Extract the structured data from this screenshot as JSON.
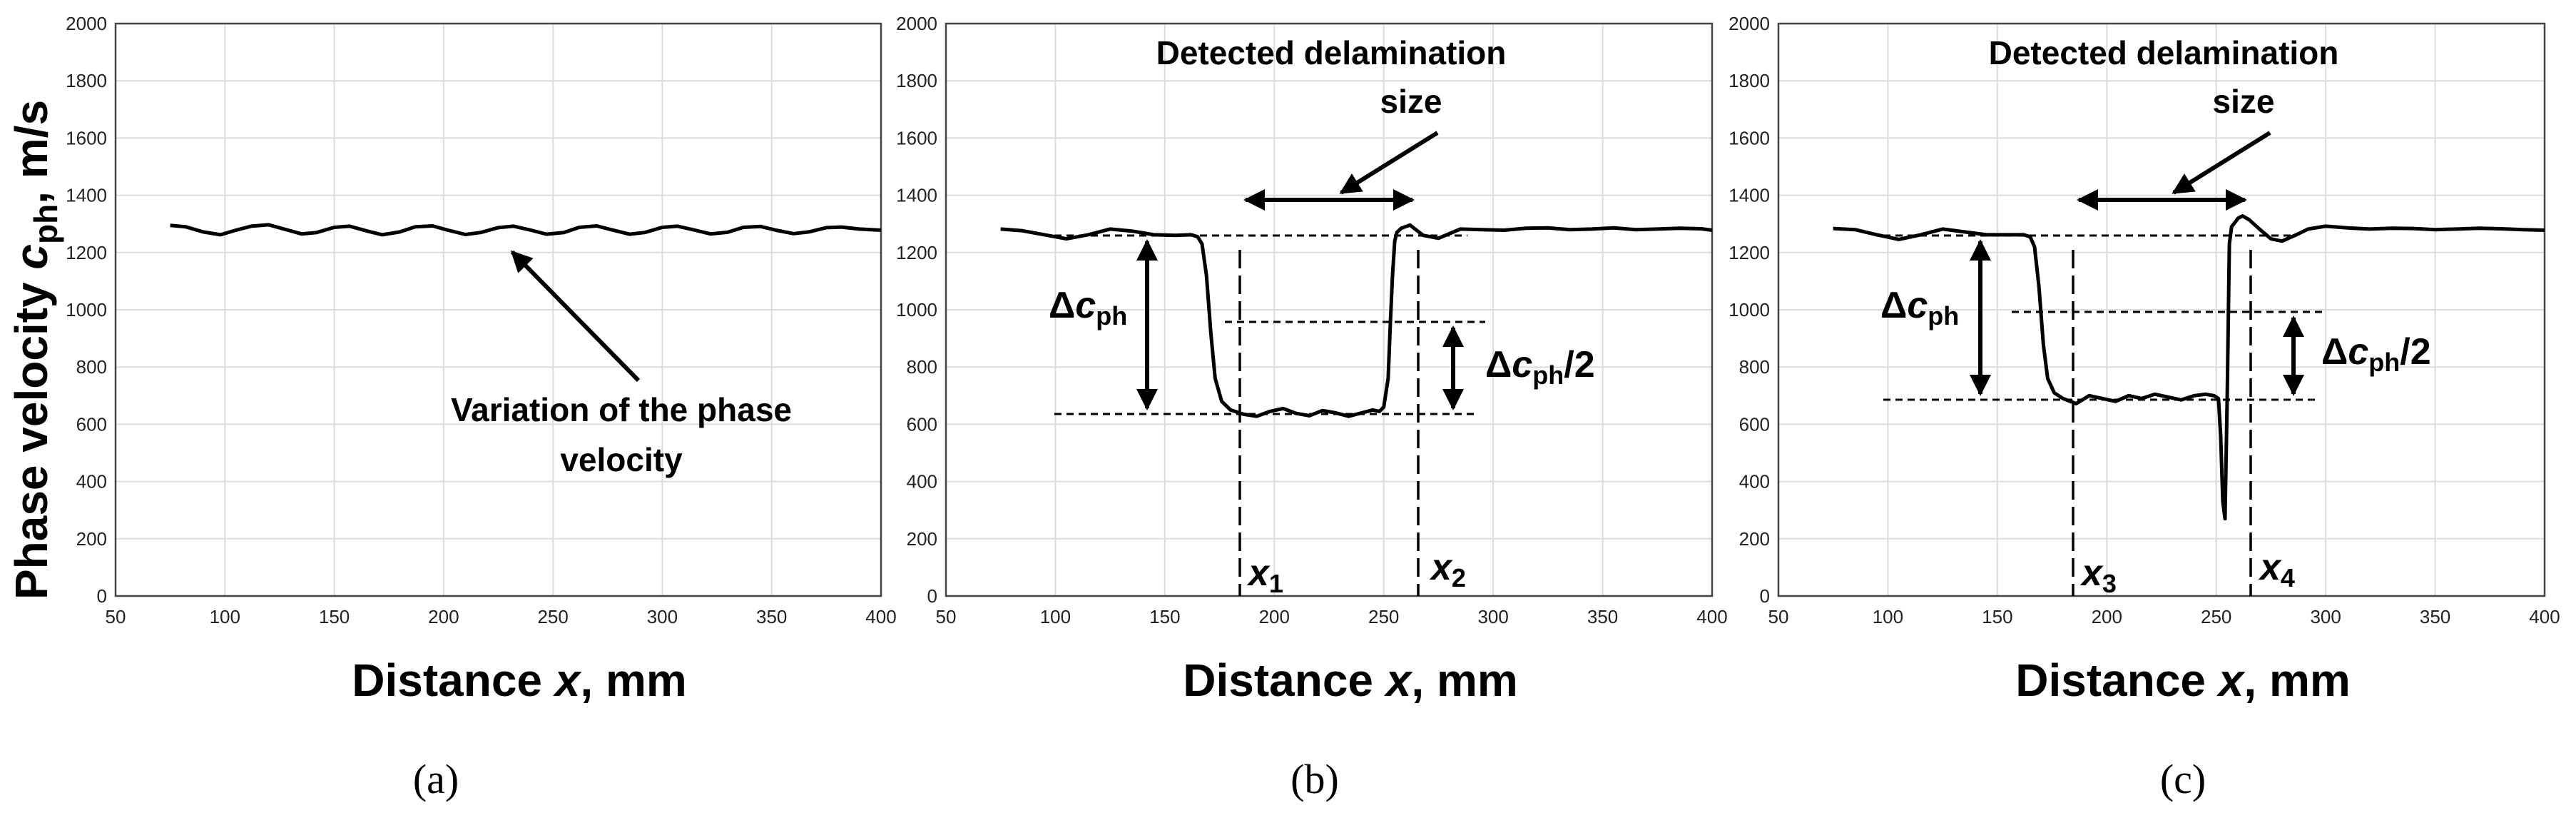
{
  "figure": {
    "shared_ylabel": "Phase velocity",
    "shared_ylabel_sym": "c",
    "shared_ylabel_sub": "ph",
    "shared_ylabel_unit": ", m/s"
  },
  "chart_data": [
    {
      "type": "line",
      "panel": "(a)",
      "xlabel_pre": "Distance ",
      "xlabel_var": "x",
      "xlabel_post": ", mm",
      "xlim": [
        50,
        400
      ],
      "ylim": [
        0,
        2000
      ],
      "xticks": [
        50,
        100,
        150,
        200,
        250,
        300,
        350,
        400
      ],
      "yticks": [
        0,
        200,
        400,
        600,
        800,
        1000,
        1200,
        1400,
        1600,
        1800,
        2000
      ],
      "grid": true,
      "series": [
        {
          "name": "phase velocity",
          "x": [
            75,
            82,
            90,
            98,
            105,
            112,
            120,
            127,
            135,
            142,
            150,
            157,
            165,
            172,
            180,
            187,
            195,
            202,
            210,
            217,
            225,
            232,
            240,
            247,
            255,
            262,
            270,
            277,
            285,
            292,
            300,
            307,
            315,
            322,
            330,
            337,
            345,
            352,
            360,
            367,
            375,
            382,
            390,
            400
          ],
          "y": [
            1295,
            1290,
            1272,
            1262,
            1278,
            1292,
            1297,
            1282,
            1265,
            1270,
            1288,
            1292,
            1275,
            1262,
            1272,
            1290,
            1293,
            1278,
            1263,
            1270,
            1287,
            1292,
            1278,
            1264,
            1270,
            1288,
            1293,
            1279,
            1264,
            1270,
            1288,
            1292,
            1278,
            1265,
            1271,
            1288,
            1291,
            1278,
            1266,
            1272,
            1287,
            1289,
            1282,
            1278
          ]
        }
      ],
      "annotations": {
        "text_line1": "Variation of the phase",
        "text_line2": "velocity"
      }
    },
    {
      "type": "line",
      "panel": "(b)",
      "xlabel_pre": "Distance ",
      "xlabel_var": "x",
      "xlabel_post": ", mm",
      "xlim": [
        50,
        400
      ],
      "ylim": [
        0,
        2000
      ],
      "xticks": [
        50,
        100,
        150,
        200,
        250,
        300,
        350,
        400
      ],
      "yticks": [
        0,
        200,
        400,
        600,
        800,
        1000,
        1200,
        1400,
        1600,
        1800,
        2000
      ],
      "grid": true,
      "series": [
        {
          "name": "phase velocity",
          "x": [
            75,
            85,
            95,
            105,
            115,
            125,
            135,
            145,
            155,
            162,
            165,
            167,
            169,
            171,
            173,
            176,
            180,
            186,
            192,
            198,
            204,
            210,
            216,
            222,
            228,
            234,
            240,
            245,
            248,
            250,
            252,
            253,
            254,
            255,
            256,
            258,
            262,
            268,
            275,
            285,
            295,
            305,
            315,
            325,
            335,
            345,
            355,
            365,
            375,
            385,
            395,
            400
          ],
          "y": [
            1282,
            1276,
            1262,
            1248,
            1262,
            1282,
            1275,
            1262,
            1260,
            1262,
            1255,
            1230,
            1120,
            920,
            760,
            680,
            650,
            635,
            628,
            645,
            655,
            638,
            630,
            648,
            640,
            628,
            640,
            650,
            645,
            660,
            760,
            950,
            1120,
            1240,
            1270,
            1285,
            1296,
            1260,
            1250,
            1282,
            1280,
            1278,
            1285,
            1286,
            1280,
            1282,
            1286,
            1280,
            1282,
            1285,
            1283,
            1278
          ]
        }
      ],
      "levels": {
        "top": 1265,
        "bottom": 645,
        "mid": 970
      },
      "x_markers": [
        169,
        255
      ],
      "annotations": {
        "title_line1": "Detected delamination",
        "title_line2": "size",
        "delta_sym": "Δ",
        "delta_var": "c",
        "delta_sub": "ph",
        "half_suffix": "/2",
        "x1_var": "x",
        "x1_sub": "1",
        "x2_var": "x",
        "x2_sub": "2"
      }
    },
    {
      "type": "line",
      "panel": "(c)",
      "xlabel_pre": "Distance ",
      "xlabel_var": "x",
      "xlabel_post": ", mm",
      "xlim": [
        50,
        400
      ],
      "ylim": [
        0,
        2000
      ],
      "xticks": [
        50,
        100,
        150,
        200,
        250,
        300,
        350,
        400
      ],
      "yticks": [
        0,
        200,
        400,
        600,
        800,
        1000,
        1200,
        1400,
        1600,
        1800,
        2000
      ],
      "grid": true,
      "series": [
        {
          "name": "phase velocity",
          "x": [
            75,
            85,
            95,
            105,
            115,
            125,
            135,
            145,
            155,
            162,
            165,
            167,
            169,
            171,
            173,
            176,
            180,
            186,
            192,
            198,
            204,
            210,
            216,
            222,
            228,
            234,
            240,
            245,
            249,
            251,
            252,
            253,
            254,
            255,
            256,
            257,
            258,
            260,
            262,
            265,
            270,
            275,
            280,
            286,
            292,
            300,
            310,
            320,
            330,
            340,
            350,
            360,
            370,
            380,
            390,
            400
          ],
          "y": [
            1284,
            1280,
            1262,
            1246,
            1262,
            1282,
            1272,
            1262,
            1262,
            1262,
            1255,
            1220,
            1080,
            880,
            760,
            710,
            690,
            672,
            700,
            690,
            680,
            700,
            690,
            705,
            695,
            685,
            700,
            705,
            700,
            690,
            560,
            330,
            270,
            700,
            1230,
            1290,
            1300,
            1320,
            1328,
            1315,
            1280,
            1248,
            1240,
            1260,
            1282,
            1292,
            1286,
            1282,
            1285,
            1284,
            1280,
            1282,
            1285,
            1283,
            1280,
            1278
          ]
        }
      ],
      "levels": {
        "top": 1265,
        "bottom": 700,
        "mid": 1005
      },
      "x_markers": [
        170,
        255
      ],
      "annotations": {
        "title_line1": "Detected delamination",
        "title_line2": "size",
        "delta_sym": "Δ",
        "delta_var": "c",
        "delta_sub": "ph",
        "half_suffix": "/2",
        "x1_var": "x",
        "x1_sub": "3",
        "x2_var": "x",
        "x2_sub": "4"
      }
    }
  ]
}
